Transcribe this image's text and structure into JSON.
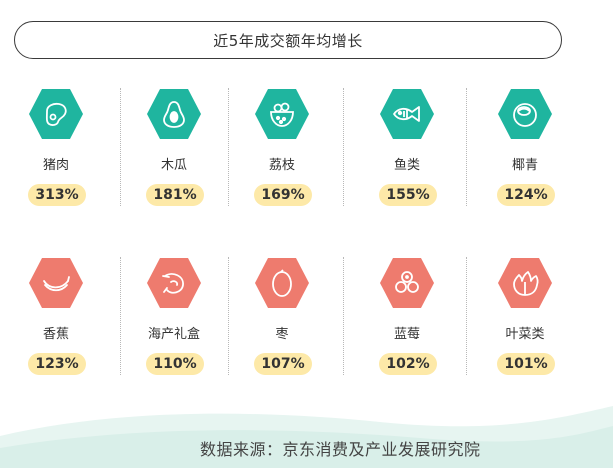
{
  "title": "近5年成交额年均增长",
  "colors": {
    "teal": "#1fb59f",
    "coral": "#ee7b6e",
    "badge": "#fde9a8"
  },
  "row1": [
    {
      "name": "猪肉",
      "pct": "313%",
      "icon": "meat-icon"
    },
    {
      "name": "木瓜",
      "pct": "181%",
      "icon": "papaya-icon"
    },
    {
      "name": "荔枝",
      "pct": "169%",
      "icon": "lychee-icon"
    },
    {
      "name": "鱼类",
      "pct": "155%",
      "icon": "fish-icon"
    },
    {
      "name": "椰青",
      "pct": "124%",
      "icon": "coconut-icon"
    }
  ],
  "row2": [
    {
      "name": "香蕉",
      "pct": "123%",
      "icon": "banana-icon"
    },
    {
      "name": "海产礼盒",
      "pct": "110%",
      "icon": "shrimp-icon"
    },
    {
      "name": "枣",
      "pct": "107%",
      "icon": "jujube-icon"
    },
    {
      "name": "蓝莓",
      "pct": "102%",
      "icon": "blueberry-icon"
    },
    {
      "name": "叶菜类",
      "pct": "101%",
      "icon": "leafy-greens-icon"
    }
  ],
  "source": "数据来源：京东消费及产业发展研究院"
}
